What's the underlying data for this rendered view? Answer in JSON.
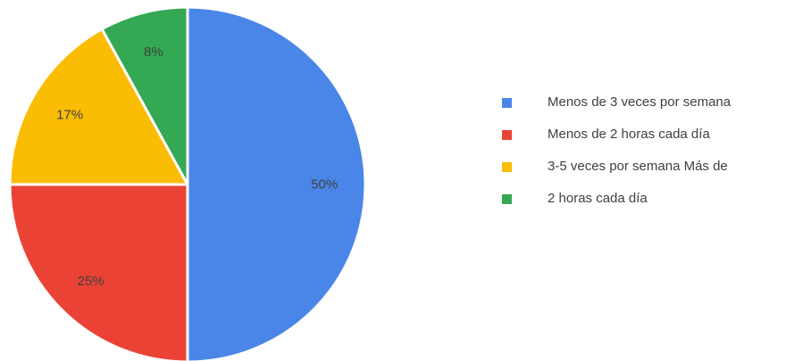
{
  "chart_data": {
    "type": "pie",
    "slices": [
      {
        "label": "Menos de 3 veces por semana",
        "value": 50,
        "value_label": "50%",
        "color": "#4A86E8"
      },
      {
        "label": "Menos de 2 horas cada día",
        "value": 25,
        "value_label": "25%",
        "color": "#EA4335"
      },
      {
        "label": "3-5 veces por semana  Más de",
        "value": 17,
        "value_label": "17%",
        "color": "#FBBC04"
      },
      {
        "label": "2 horas cada día",
        "value": 8,
        "value_label": "8%",
        "color": "#34A853"
      }
    ],
    "legend_position": "right",
    "start_angle": "top, clockwise"
  }
}
